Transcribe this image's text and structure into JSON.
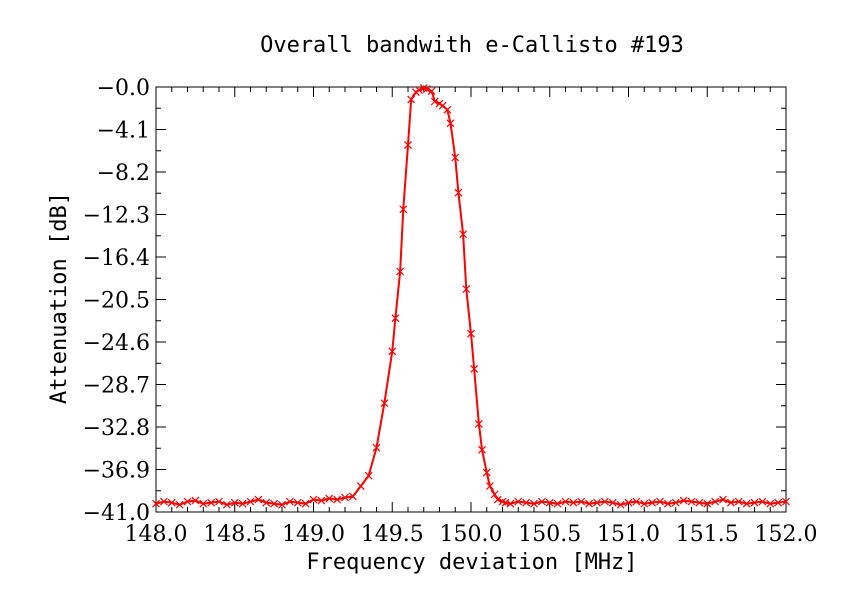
{
  "chart_data": {
    "type": "line",
    "title": "Overall bandwith e-Callisto #193",
    "xlabel": "Frequency deviation [MHz]",
    "ylabel": "Attenuation [dB]",
    "xlim": [
      148.0,
      152.0
    ],
    "ylim": [
      -41.0,
      0.0
    ],
    "xticks": [
      "148.0",
      "148.5",
      "149.0",
      "149.5",
      "150.0",
      "150.5",
      "151.0",
      "151.5",
      "152.0"
    ],
    "yticks": [
      "-0.0",
      "-4.1",
      "-8.2",
      "-12.3",
      "-16.4",
      "-20.5",
      "-24.6",
      "-28.7",
      "-32.8",
      "-36.9",
      "-41.0"
    ],
    "grid": false,
    "legend": "none",
    "color": "#ff0000",
    "marker": "x",
    "series": [
      {
        "x": [
          148.0,
          148.05,
          148.1,
          148.15,
          148.2,
          148.25,
          148.3,
          148.35,
          148.4,
          148.45,
          148.5,
          148.55,
          148.6,
          148.65,
          148.7,
          148.75,
          148.8,
          148.85,
          148.9,
          148.95,
          149.0,
          149.05,
          149.1,
          149.15,
          149.2,
          149.25,
          149.3,
          149.35,
          149.4,
          149.45,
          149.5,
          149.52,
          149.55,
          149.57,
          149.6,
          149.62,
          149.65,
          149.67,
          149.7,
          149.72,
          149.75,
          149.77,
          149.8,
          149.82,
          149.85,
          149.87,
          149.9,
          149.92,
          149.95,
          149.97,
          150.0,
          150.02,
          150.05,
          150.07,
          150.1,
          150.12,
          150.15,
          150.17,
          150.2,
          150.22,
          150.25,
          150.3,
          150.35,
          150.4,
          150.45,
          150.5,
          150.55,
          150.6,
          150.65,
          150.7,
          150.75,
          150.8,
          150.85,
          150.9,
          150.95,
          151.0,
          151.05,
          151.1,
          151.15,
          151.2,
          151.25,
          151.3,
          151.35,
          151.4,
          151.45,
          151.5,
          151.55,
          151.6,
          151.65,
          151.7,
          151.75,
          151.8,
          151.85,
          151.9,
          151.95,
          152.0
        ],
        "y": [
          -40.2,
          -40.0,
          -40.1,
          -40.3,
          -40.0,
          -39.9,
          -40.2,
          -40.1,
          -40.0,
          -40.3,
          -40.1,
          -40.2,
          -40.0,
          -39.8,
          -40.1,
          -40.2,
          -40.3,
          -40.0,
          -40.1,
          -40.2,
          -39.8,
          -39.9,
          -39.7,
          -39.8,
          -39.6,
          -39.5,
          -38.5,
          -37.5,
          -34.8,
          -30.5,
          -25.5,
          -22.3,
          -17.8,
          -11.8,
          -5.6,
          -1.2,
          -0.5,
          -0.3,
          -0.1,
          -0.2,
          -0.4,
          -1.4,
          -1.6,
          -1.8,
          -2.2,
          -3.5,
          -6.8,
          -10.2,
          -14.2,
          -19.5,
          -23.8,
          -27.2,
          -32.5,
          -35.0,
          -37.2,
          -38.5,
          -39.3,
          -39.8,
          -40.0,
          -40.1,
          -40.2,
          -40.0,
          -40.1,
          -40.2,
          -40.0,
          -40.1,
          -40.2,
          -40.0,
          -40.1,
          -40.0,
          -40.2,
          -40.1,
          -40.0,
          -40.1,
          -40.3,
          -40.1,
          -40.0,
          -40.2,
          -40.1,
          -40.0,
          -40.2,
          -40.1,
          -39.9,
          -40.0,
          -40.1,
          -40.2,
          -40.0,
          -39.8,
          -40.1,
          -40.0,
          -40.2,
          -40.1,
          -40.0,
          -40.2,
          -40.1,
          -40.0
        ]
      }
    ]
  }
}
